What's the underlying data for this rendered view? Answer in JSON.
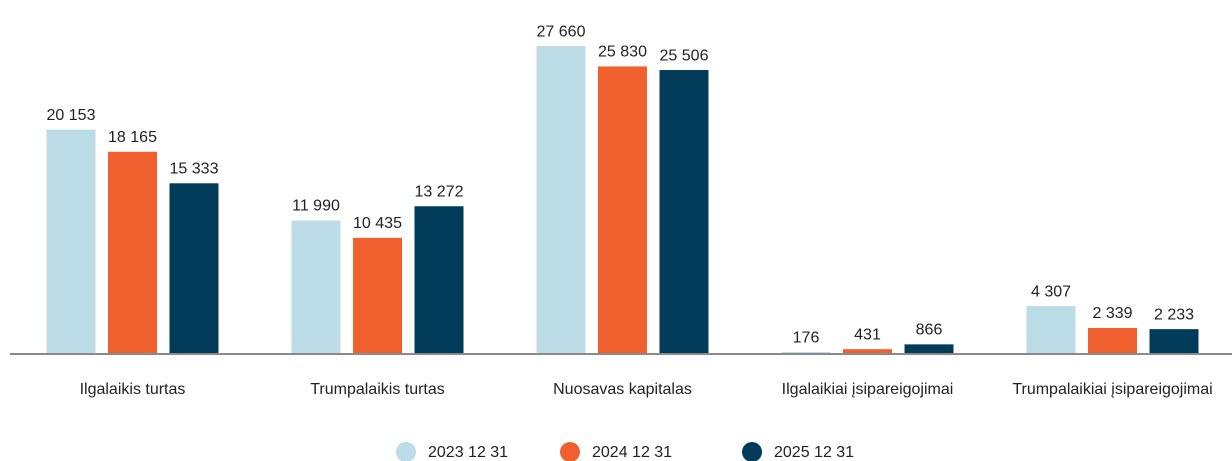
{
  "chart_data": {
    "type": "bar",
    "categories": [
      "Ilgalaikis turtas",
      "Trumpalaikis turtas",
      "Nuosavas kapitalas",
      "Ilgalaikiai įsipareigojimai",
      "Trumpalaikiai įsipareigojimai"
    ],
    "series": [
      {
        "name": "2023 12 31",
        "color": "#bcdce8",
        "values": [
          20153,
          11990,
          27660,
          176,
          4307
        ],
        "value_labels": [
          "20 153",
          "11 990",
          "27 660",
          "176",
          "4 307"
        ]
      },
      {
        "name": "2024 12 31",
        "color": "#f05f2e",
        "values": [
          18165,
          10435,
          25830,
          431,
          2339
        ],
        "value_labels": [
          "18 165",
          "10 435",
          "25 830",
          "431",
          "2 339"
        ]
      },
      {
        "name": "2025 12 31",
        "color": "#003c5a",
        "values": [
          15333,
          13272,
          25506,
          866,
          2233
        ],
        "value_labels": [
          "15 333",
          "13 272",
          "25 506",
          "866",
          "2 233"
        ]
      }
    ],
    "ylim": [
      0,
      30000
    ],
    "legend": "bottom"
  }
}
